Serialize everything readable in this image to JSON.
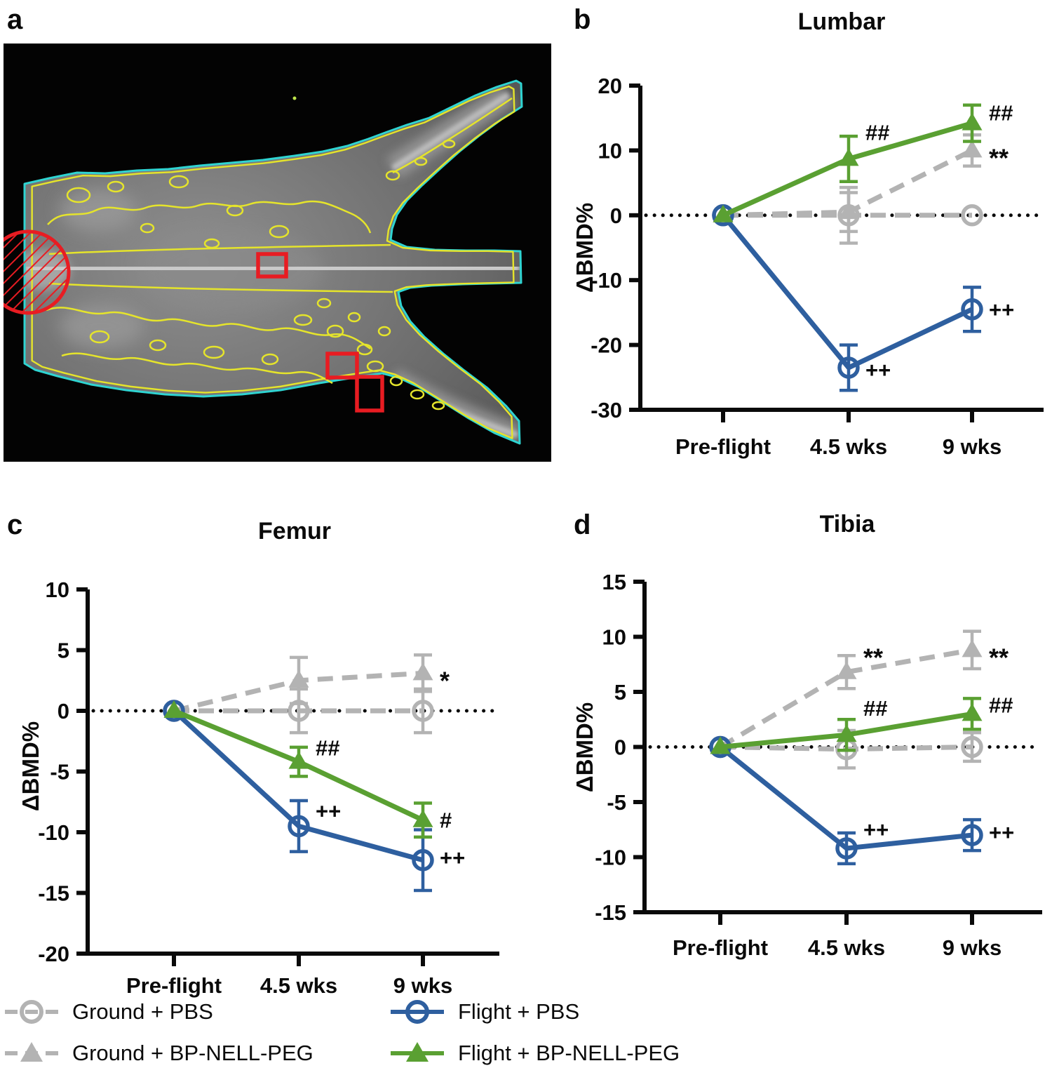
{
  "figure": {
    "panel_labels": {
      "a": "a",
      "b": "b",
      "c": "c",
      "d": "d"
    }
  },
  "colors": {
    "ground": "#b3b3b3",
    "flight_pbs": "#2e5f9f",
    "flight_bp": "#5aa032",
    "scan_outline": "#2fd4d2",
    "scan_contour": "#e5e42b",
    "roi_red": "#e81c22",
    "axis_black": "#0a0a0a"
  },
  "legend": {
    "position": "bottom",
    "items": [
      {
        "label": "Ground + PBS",
        "marker": "open-circle",
        "line": "dashed",
        "color": "#b3b3b3"
      },
      {
        "label": "Flight + PBS",
        "marker": "open-circle",
        "line": "solid",
        "color": "#2e5f9f"
      },
      {
        "label": "Ground + BP-NELL-PEG",
        "marker": "filled-triangle",
        "line": "dashed",
        "color": "#b3b3b3"
      },
      {
        "label": "Flight + BP-NELL-PEG",
        "marker": "filled-triangle",
        "line": "solid",
        "color": "#5aa032"
      }
    ]
  },
  "chart_data": [
    {
      "panel": "b",
      "type": "line",
      "title": "Lumbar",
      "ylabel": "ΔBMD%",
      "xlabel": "",
      "x_categories": [
        "Pre-flight",
        "4.5 wks",
        "9 wks"
      ],
      "ylim": [
        -30,
        20
      ],
      "yticks": [
        20,
        10,
        0,
        -10,
        -20,
        -30
      ],
      "zero_line_dotted": true,
      "grid": false,
      "series": [
        {
          "name": "Ground + BP-NELL-PEG",
          "marker": "filled-triangle",
          "line": "dashed",
          "color": "#b3b3b3",
          "values": [
            0,
            0.5,
            10.0
          ],
          "errors": [
            0,
            3.0,
            2.4
          ],
          "annotations": [
            "",
            "",
            "**"
          ],
          "ann_dy": [
            0,
            0,
            12
          ]
        },
        {
          "name": "Ground + PBS",
          "marker": "open-circle",
          "line": "dashed",
          "color": "#b3b3b3",
          "values": [
            0,
            0,
            0
          ],
          "errors": [
            0,
            4.3,
            0
          ]
        },
        {
          "name": "Flight + PBS",
          "marker": "open-circle",
          "line": "solid",
          "color": "#2e5f9f",
          "values": [
            0,
            -23.5,
            -14.5
          ],
          "errors": [
            0,
            3.5,
            3.4
          ],
          "annotations": [
            "",
            "++",
            "++"
          ],
          "ann_dy": [
            0,
            3,
            0
          ]
        },
        {
          "name": "Flight + BP-NELL-PEG",
          "marker": "filled-triangle",
          "line": "solid",
          "color": "#5aa032",
          "values": [
            0,
            8.7,
            14.2
          ],
          "errors": [
            0,
            3.5,
            2.8
          ],
          "annotations": [
            "",
            "##",
            "##"
          ],
          "ann_dy": [
            0,
            -38,
            -15
          ]
        }
      ]
    },
    {
      "panel": "c",
      "type": "line",
      "title": "Femur",
      "ylabel": "ΔBMD%",
      "xlabel": "",
      "x_categories": [
        "Pre-flight",
        "4.5 wks",
        "9 wks"
      ],
      "ylim": [
        -20,
        10
      ],
      "yticks": [
        10,
        5,
        0,
        -5,
        -10,
        -15,
        -20
      ],
      "zero_line_dotted": true,
      "grid": false,
      "series": [
        {
          "name": "Ground + BP-NELL-PEG",
          "marker": "filled-triangle",
          "line": "dashed",
          "color": "#b3b3b3",
          "values": [
            0,
            2.5,
            3.1
          ],
          "errors": [
            0,
            1.9,
            1.5
          ],
          "annotations": [
            "",
            "",
            "*"
          ],
          "ann_dy": [
            0,
            0,
            12
          ]
        },
        {
          "name": "Ground + PBS",
          "marker": "open-circle",
          "line": "dashed",
          "color": "#b3b3b3",
          "values": [
            0,
            0,
            0
          ],
          "errors": [
            0,
            1.8,
            1.8
          ]
        },
        {
          "name": "Flight + PBS",
          "marker": "open-circle",
          "line": "solid",
          "color": "#2e5f9f",
          "values": [
            0,
            -9.5,
            -12.3
          ],
          "errors": [
            0,
            2.1,
            2.5
          ],
          "annotations": [
            "",
            "++",
            "++"
          ],
          "ann_dy": [
            0,
            -22,
            -4
          ]
        },
        {
          "name": "Flight + BP-NELL-PEG",
          "marker": "filled-triangle",
          "line": "solid",
          "color": "#5aa032",
          "values": [
            0,
            -4.2,
            -9.0
          ],
          "errors": [
            0,
            1.2,
            1.4
          ],
          "annotations": [
            "",
            "##",
            "#"
          ],
          "ann_dy": [
            0,
            -20,
            0
          ]
        }
      ]
    },
    {
      "panel": "d",
      "type": "line",
      "title": "Tibia",
      "ylabel": "ΔBMD%",
      "xlabel": "",
      "x_categories": [
        "Pre-flight",
        "4.5 wks",
        "9 wks"
      ],
      "ylim": [
        -15,
        15
      ],
      "yticks": [
        15,
        10,
        5,
        0,
        -5,
        -10,
        -15
      ],
      "zero_line_dotted": true,
      "grid": false,
      "series": [
        {
          "name": "Ground + BP-NELL-PEG",
          "marker": "filled-triangle",
          "line": "dashed",
          "color": "#b3b3b3",
          "values": [
            0,
            6.8,
            8.8
          ],
          "errors": [
            0,
            1.5,
            1.7
          ],
          "annotations": [
            "",
            "**",
            "**"
          ],
          "ann_dy": [
            0,
            -19,
            12
          ]
        },
        {
          "name": "Ground + PBS",
          "marker": "open-circle",
          "line": "dashed",
          "color": "#b3b3b3",
          "values": [
            0,
            -0.2,
            0
          ],
          "errors": [
            0,
            1.7,
            1.3
          ]
        },
        {
          "name": "Flight + PBS",
          "marker": "open-circle",
          "line": "solid",
          "color": "#2e5f9f",
          "values": [
            0,
            -9.2,
            -8.0
          ],
          "errors": [
            0,
            1.4,
            1.4
          ],
          "annotations": [
            "",
            "++",
            "++"
          ],
          "ann_dy": [
            0,
            -27,
            -4
          ]
        },
        {
          "name": "Flight + BP-NELL-PEG",
          "marker": "filled-triangle",
          "line": "solid",
          "color": "#5aa032",
          "values": [
            0,
            1.1,
            3.0
          ],
          "errors": [
            0,
            1.4,
            1.4
          ],
          "annotations": [
            "",
            "##",
            "##"
          ],
          "ann_dy": [
            0,
            -38,
            -13
          ]
        }
      ]
    }
  ]
}
